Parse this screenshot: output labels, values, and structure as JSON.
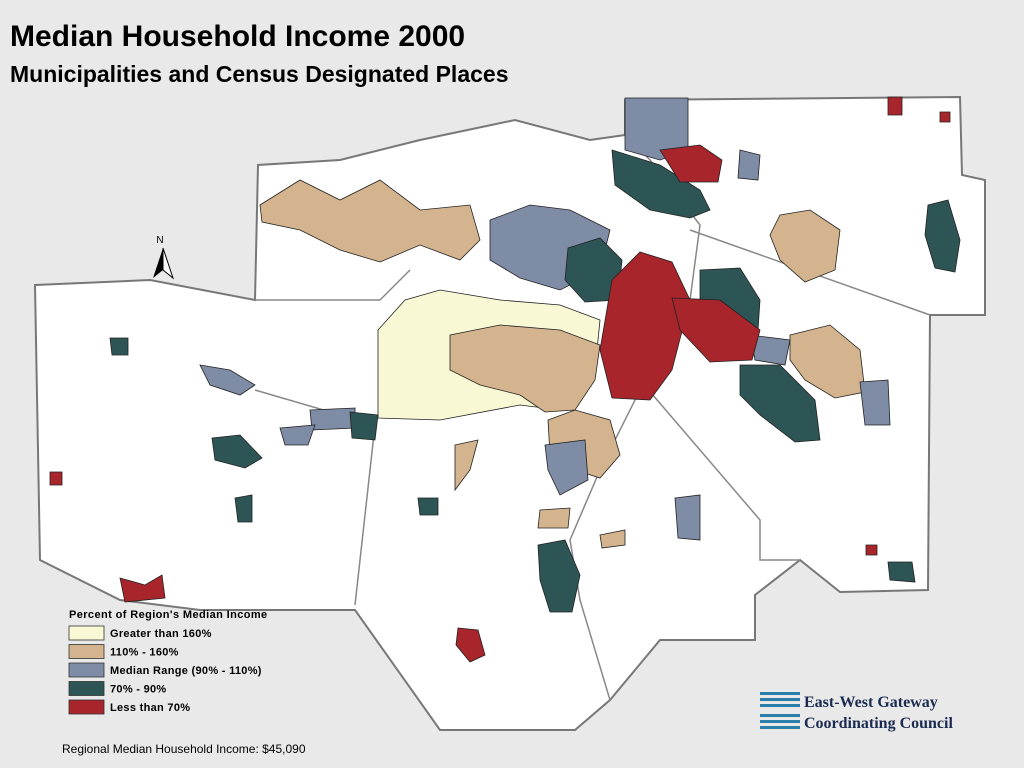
{
  "header": {
    "title": "Median Household Income 2000",
    "subtitle": "Municipalities and Census Designated Places"
  },
  "north_arrow": "N",
  "legend": {
    "title": "Percent of Region's Median Income",
    "items": [
      {
        "label": "Greater than 160%",
        "color": "#f8f8d4"
      },
      {
        "label": "110% - 160%",
        "color": "#d3b48e"
      },
      {
        "label": "Median Range (90% - 110%)",
        "color": "#7f8ca6"
      },
      {
        "label": "70% - 90%",
        "color": "#2e5555"
      },
      {
        "label": "Less than 70%",
        "color": "#a8252b"
      }
    ]
  },
  "footnote": "Regional Median Household Income: $45,090",
  "logo": {
    "line1": "East-West Gateway",
    "line2": "Coordinating Council"
  }
}
